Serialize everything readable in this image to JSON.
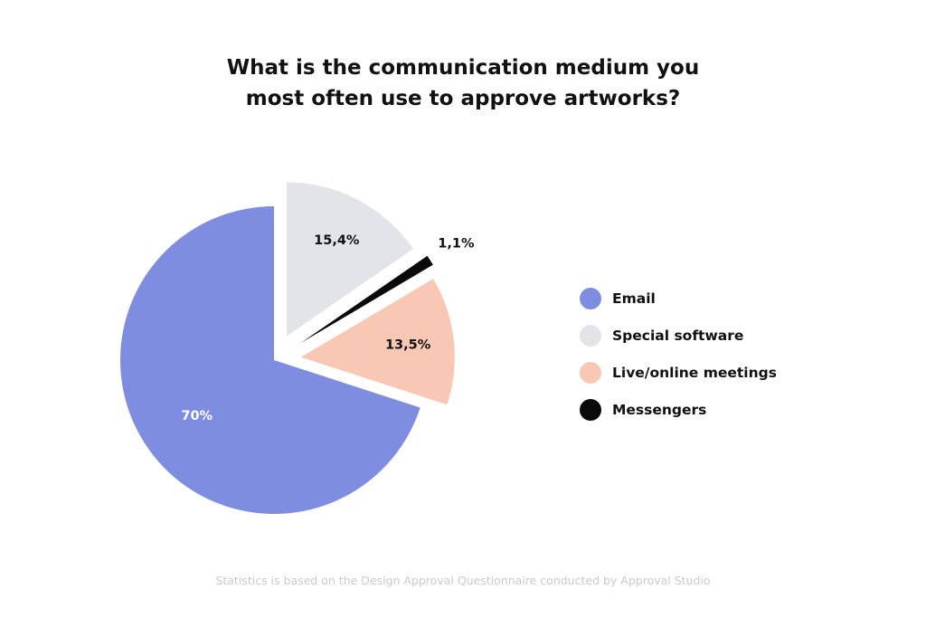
{
  "chart_data": {
    "type": "pie",
    "title_lines": [
      "What is the communication medium you",
      "most often use to approve artworks?"
    ],
    "slices": [
      {
        "name": "Email",
        "value": 70,
        "label": "70%",
        "color": "#7f8de0",
        "label_color": "#ffffff"
      },
      {
        "name": "Live/online meetings",
        "value": 13.5,
        "label": "13,5%",
        "color": "#f9c8b4",
        "label_color": "#111111"
      },
      {
        "name": "Messengers",
        "value": 1.1,
        "label": "1,1%",
        "color": "#0a0a0a",
        "label_color": "#111111"
      },
      {
        "name": "Special software",
        "value": 15.4,
        "label": "15,4%",
        "color": "#e2e4e8",
        "label_color": "#111111"
      }
    ],
    "legend_order": [
      "Email",
      "Special software",
      "Live/online meetings",
      "Messengers"
    ],
    "legend_position": "right",
    "exploded": true,
    "footnote": "Statistics is based on the Design Approval Questionnaire conducted by Approval Studio"
  }
}
